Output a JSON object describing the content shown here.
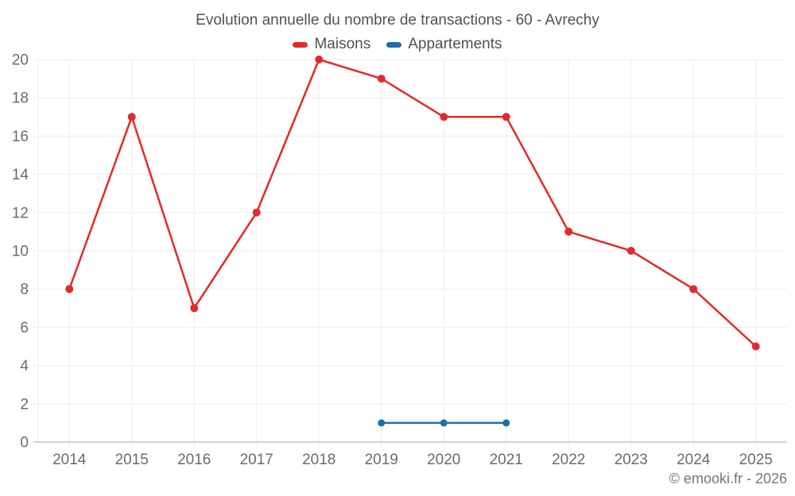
{
  "chart_data": {
    "type": "line",
    "title": "Evolution annuelle du nombre de transactions - 60 - Avrechy",
    "categories": [
      "2014",
      "2015",
      "2016",
      "2017",
      "2018",
      "2019",
      "2020",
      "2021",
      "2022",
      "2023",
      "2024",
      "2025"
    ],
    "series": [
      {
        "name": "Maisons",
        "color": "#e22a2a",
        "values": [
          8,
          17,
          7,
          12,
          20,
          19,
          17,
          17,
          11,
          10,
          8,
          5
        ]
      },
      {
        "name": "Appartements",
        "color": "#1a6fa8",
        "values": [
          null,
          null,
          null,
          null,
          null,
          1,
          1,
          1,
          null,
          null,
          null,
          null
        ]
      }
    ],
    "xlabel": "",
    "ylabel": "",
    "ylim": [
      0,
      20
    ],
    "yticks": [
      0,
      2,
      4,
      6,
      8,
      10,
      12,
      14,
      16,
      18,
      20
    ],
    "grid": true,
    "legend_position": "top",
    "footer": "© emooki.fr - 2026",
    "colors": {
      "gridline": "#ededed",
      "axis_line": "#c7c7c7",
      "tick_label": "#6b6b6b",
      "title_text": "#515151",
      "footer_text": "#757575"
    }
  }
}
